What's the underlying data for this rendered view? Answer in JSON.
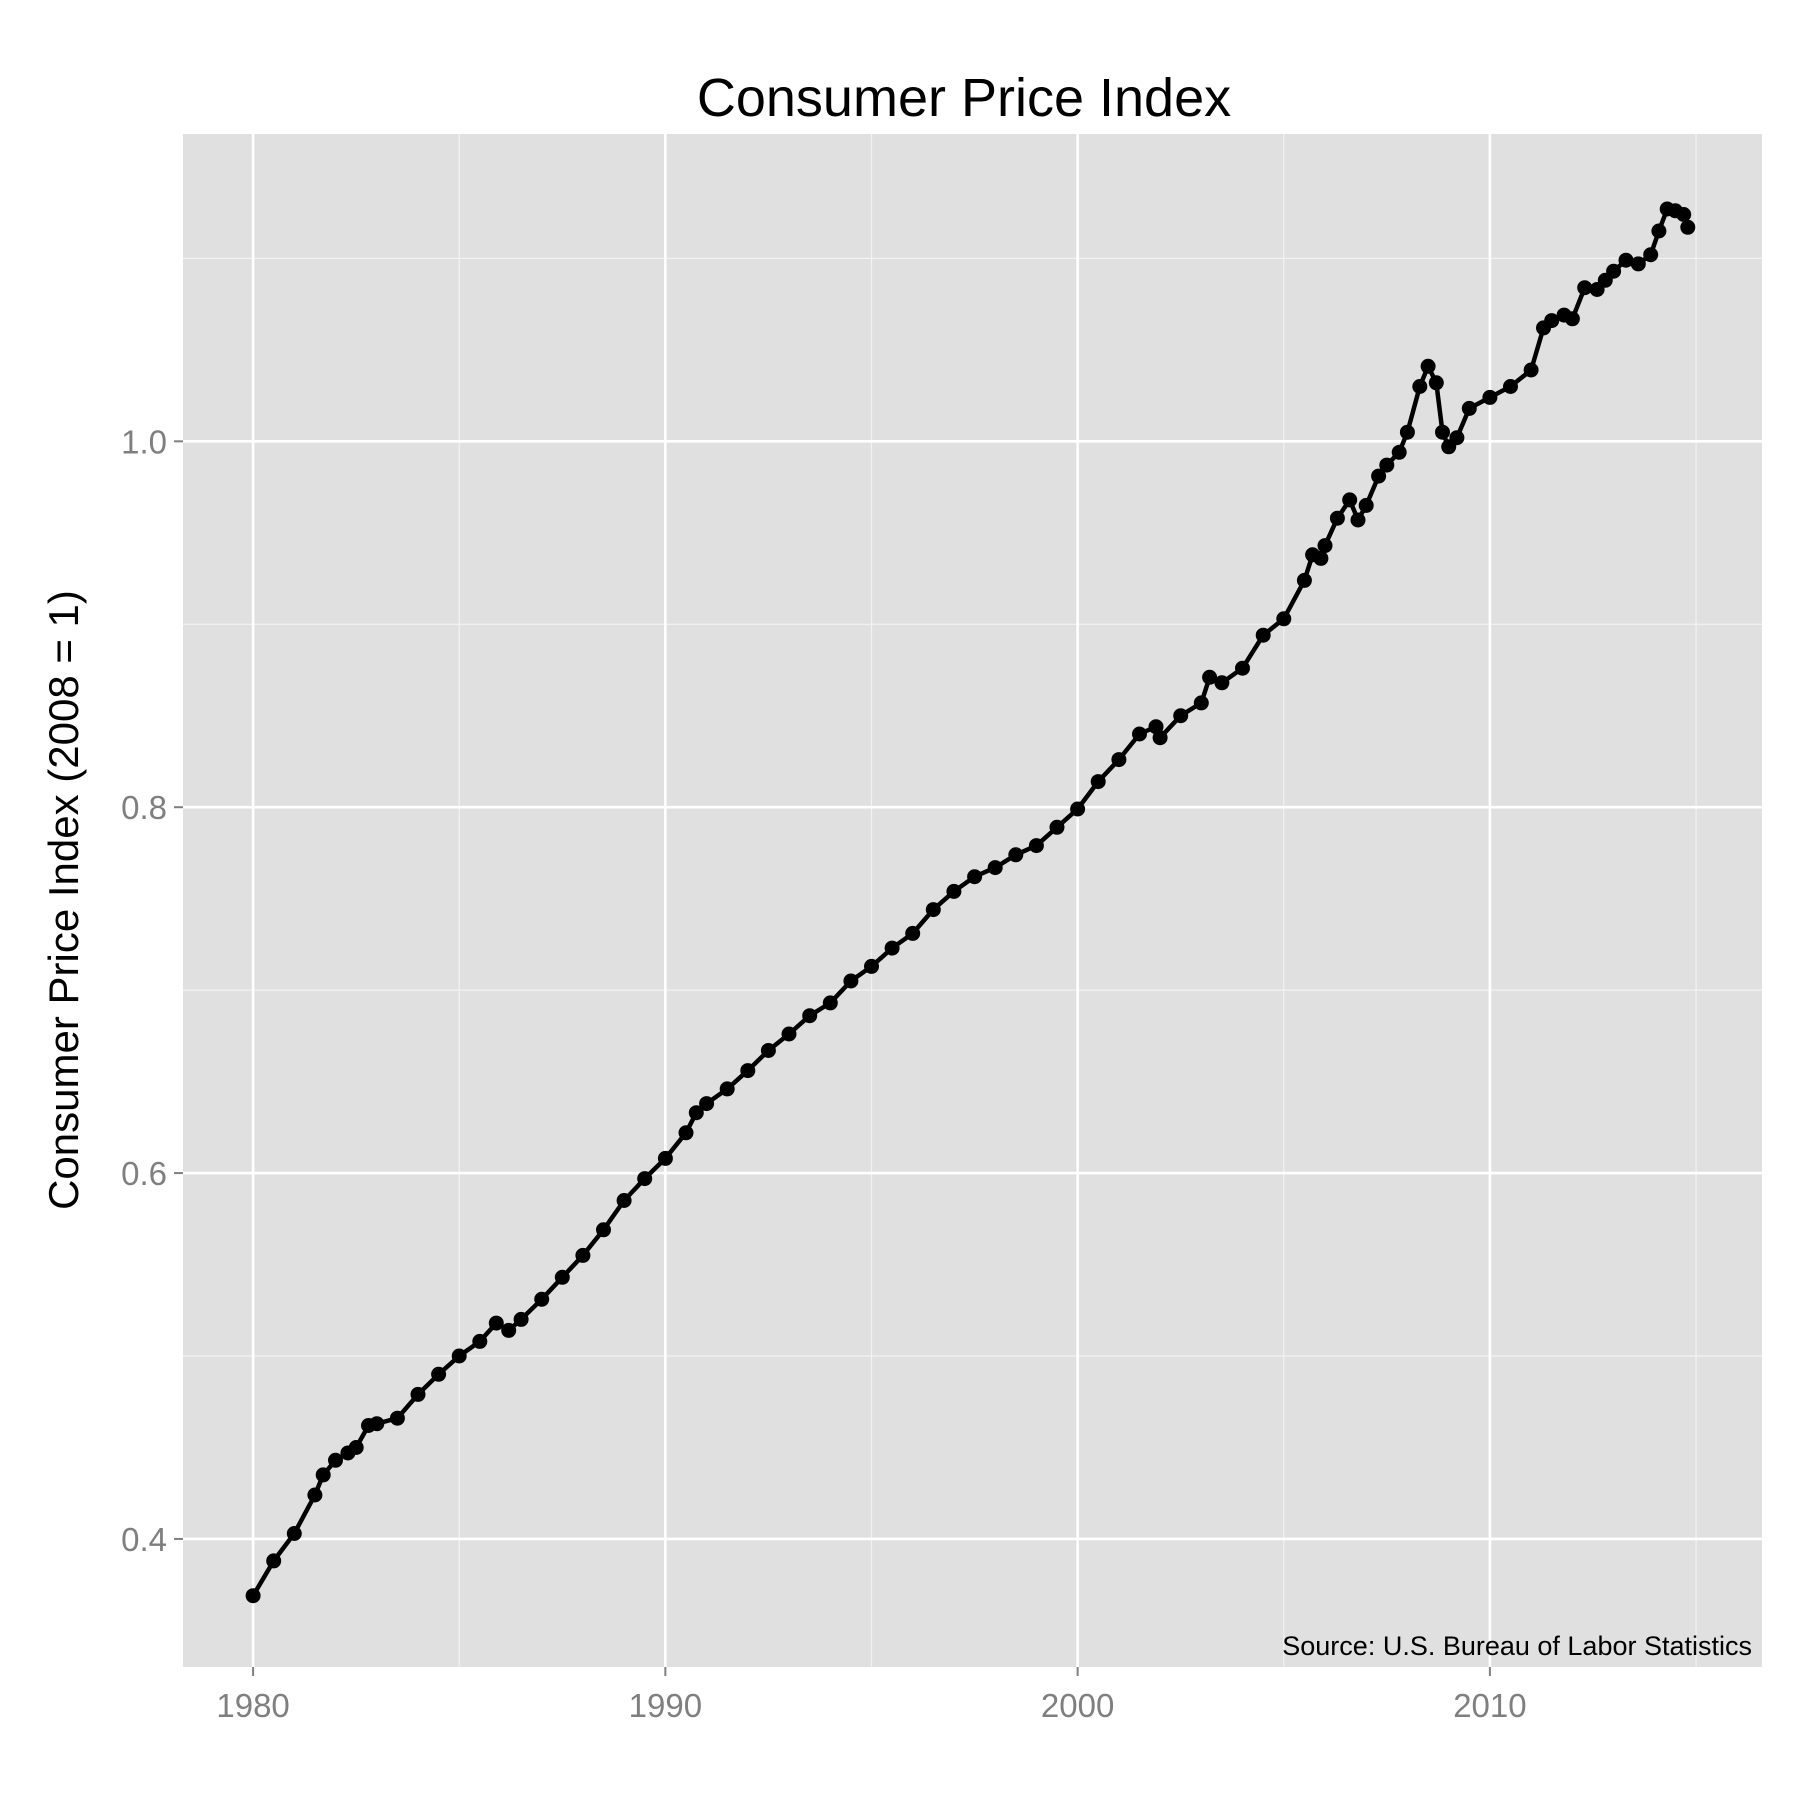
{
  "chart_data": {
    "type": "line",
    "title": "Consumer Price Index",
    "xlabel": "",
    "ylabel": "Consumer Price Index (2008 = 1)",
    "annotation": "Source:  U.S. Bureau of Labor Statistics",
    "xlim": [
      1978.3,
      2016.6
    ],
    "ylim": [
      0.33,
      1.168
    ],
    "x_ticks": [
      1980,
      1990,
      2000,
      2010
    ],
    "x_tick_labels": [
      "1980",
      "1990",
      "2000",
      "2010"
    ],
    "y_ticks": [
      0.4,
      0.6,
      0.8,
      1.0
    ],
    "y_tick_labels": [
      "0.4",
      "0.6",
      "0.8",
      "1.0"
    ],
    "grid": true,
    "markers": true,
    "series": [
      {
        "x": [
          1980.0,
          1980.5,
          1981.0,
          1981.5,
          1981.7,
          1982.0,
          1982.3,
          1982.5,
          1982.8,
          1983.0,
          1983.5,
          1984.0,
          1984.5,
          1985.0,
          1985.5,
          1985.9,
          1986.2,
          1986.5,
          1987.0,
          1987.5,
          1988.0,
          1988.5,
          1989.0,
          1989.5,
          1990.0,
          1990.5,
          1990.75,
          1991.0,
          1991.5,
          1992.0,
          1992.5,
          1993.0,
          1993.5,
          1994.0,
          1994.5,
          1995.0,
          1995.5,
          1996.0,
          1996.5,
          1997.0,
          1997.5,
          1998.0,
          1998.5,
          1999.0,
          1999.5,
          2000.0,
          2000.5,
          2001.0,
          2001.5,
          2001.9,
          2002.0,
          2002.5,
          2003.0,
          2003.2,
          2003.5,
          2004.0,
          2004.5,
          2005.0,
          2005.5,
          2005.7,
          2005.9,
          2006.0,
          2006.3,
          2006.6,
          2006.8,
          2007.0,
          2007.3,
          2007.5,
          2007.8,
          2008.0,
          2008.3,
          2008.5,
          2008.7,
          2008.85,
          2009.0,
          2009.2,
          2009.5,
          2010.0,
          2010.5,
          2011.0,
          2011.3,
          2011.5,
          2011.8,
          2012.0,
          2012.3,
          2012.6,
          2012.8,
          2013.0,
          2013.3,
          2013.6,
          2013.9,
          2014.1,
          2014.3,
          2014.5,
          2014.7,
          2014.8
        ],
        "values": [
          0.369,
          0.388,
          0.403,
          0.424,
          0.435,
          0.443,
          0.447,
          0.45,
          0.462,
          0.463,
          0.466,
          0.479,
          0.49,
          0.5,
          0.508,
          0.518,
          0.514,
          0.52,
          0.531,
          0.543,
          0.555,
          0.569,
          0.585,
          0.597,
          0.608,
          0.622,
          0.633,
          0.638,
          0.646,
          0.656,
          0.667,
          0.676,
          0.686,
          0.693,
          0.705,
          0.713,
          0.723,
          0.731,
          0.744,
          0.754,
          0.762,
          0.767,
          0.774,
          0.779,
          0.789,
          0.799,
          0.814,
          0.826,
          0.84,
          0.844,
          0.838,
          0.85,
          0.857,
          0.871,
          0.868,
          0.876,
          0.894,
          0.903,
          0.924,
          0.938,
          0.936,
          0.943,
          0.958,
          0.968,
          0.957,
          0.965,
          0.981,
          0.987,
          0.994,
          1.005,
          1.03,
          1.041,
          1.032,
          1.005,
          0.997,
          1.002,
          1.018,
          1.024,
          1.03,
          1.039,
          1.062,
          1.066,
          1.069,
          1.067,
          1.084,
          1.083,
          1.088,
          1.093,
          1.099,
          1.097,
          1.102,
          1.115,
          1.127,
          1.126,
          1.124,
          1.117
        ]
      }
    ]
  }
}
